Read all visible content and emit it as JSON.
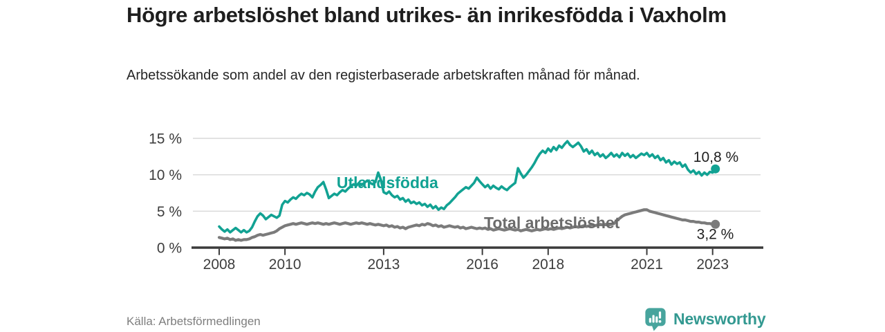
{
  "header": {
    "title": "Högre arbetslöshet bland utrikes- än inrikesfödda i Vaxholm",
    "subtitle": "Arbetssökande som andel av den registerbaserade arbetskraften månad för månad."
  },
  "chart_data": {
    "type": "line",
    "unit": "%",
    "frequency": "monthly",
    "x_start": "2008-01",
    "x_end": "2023-02",
    "ylim": [
      0,
      16.5
    ],
    "grid": "horizontal",
    "legend_position": "inline-labels",
    "yticks": [
      {
        "value": 0,
        "label": "0 %"
      },
      {
        "value": 5,
        "label": "5 %"
      },
      {
        "value": 10,
        "label": "10 %"
      },
      {
        "value": 15,
        "label": "15 %"
      }
    ],
    "xticks": [
      {
        "value": 2008,
        "label": "2008"
      },
      {
        "value": 2010,
        "label": "2010"
      },
      {
        "value": 2013,
        "label": "2013"
      },
      {
        "value": 2016,
        "label": "2016"
      },
      {
        "value": 2018,
        "label": "2018"
      },
      {
        "value": 2021,
        "label": "2021"
      },
      {
        "value": 2023,
        "label": "2023"
      }
    ],
    "series": [
      {
        "name": "Utlandsfödda",
        "color": "#12a293",
        "end_value_label": "10,8 %",
        "end_value": 10.8,
        "values": [
          2.9,
          2.5,
          2.2,
          2.5,
          2.1,
          2.4,
          2.7,
          2.4,
          2.1,
          2.4,
          2.1,
          2.3,
          2.8,
          3.6,
          4.3,
          4.7,
          4.4,
          3.9,
          4.2,
          4.5,
          4.3,
          4.1,
          4.4,
          5.9,
          6.4,
          6.2,
          6.6,
          6.9,
          6.7,
          7.1,
          7.4,
          7.2,
          7.5,
          7.3,
          6.9,
          7.7,
          8.3,
          8.6,
          9.0,
          8.0,
          6.8,
          7.1,
          7.4,
          7.2,
          7.6,
          7.9,
          7.7,
          8.1,
          8.4,
          8.7,
          8.5,
          8.9,
          8.6,
          8.9,
          9.2,
          8.9,
          8.7,
          9.0,
          10.3,
          9.3,
          7.6,
          7.4,
          7.7,
          7.2,
          6.9,
          7.1,
          6.6,
          6.8,
          6.3,
          6.6,
          6.1,
          6.3,
          6.0,
          6.2,
          5.8,
          6.0,
          5.6,
          5.9,
          5.4,
          5.7,
          5.2,
          5.5,
          5.3,
          5.8,
          6.1,
          6.5,
          6.9,
          7.4,
          7.7,
          8.0,
          8.3,
          8.1,
          8.5,
          8.9,
          9.6,
          9.1,
          8.7,
          8.3,
          8.6,
          8.1,
          8.5,
          8.2,
          8.0,
          8.4,
          8.1,
          7.9,
          8.3,
          8.6,
          8.9,
          10.9,
          10.2,
          9.6,
          10.0,
          10.5,
          11.0,
          11.6,
          12.3,
          12.9,
          13.3,
          13.0,
          13.6,
          13.2,
          13.8,
          13.4,
          14.0,
          13.7,
          14.2,
          14.6,
          14.1,
          13.8,
          14.1,
          14.4,
          13.9,
          13.2,
          13.5,
          12.9,
          13.3,
          12.7,
          13.0,
          12.5,
          12.8,
          12.3,
          12.6,
          13.0,
          12.5,
          12.8,
          12.4,
          13.0,
          12.6,
          12.9,
          12.4,
          12.7,
          12.3,
          12.6,
          12.9,
          12.7,
          13.0,
          12.5,
          12.8,
          12.3,
          12.6,
          12.0,
          12.3,
          11.7,
          12.0,
          11.4,
          11.8,
          11.5,
          11.7,
          11.1,
          11.4,
          10.7,
          10.3,
          10.6,
          10.1,
          10.4,
          9.9,
          10.3,
          10.0,
          10.4,
          10.3,
          10.8
        ]
      },
      {
        "name": "Total arbetslöshet",
        "color": "#7b7b7b",
        "end_value_label": "3,2 %",
        "end_value": 3.2,
        "values": [
          1.4,
          1.3,
          1.2,
          1.3,
          1.1,
          1.2,
          1.0,
          1.1,
          1.0,
          1.1,
          1.1,
          1.2,
          1.4,
          1.5,
          1.7,
          1.8,
          1.7,
          1.8,
          1.9,
          2.0,
          2.1,
          2.3,
          2.6,
          2.8,
          3.0,
          3.1,
          3.2,
          3.3,
          3.2,
          3.3,
          3.4,
          3.3,
          3.2,
          3.3,
          3.4,
          3.3,
          3.4,
          3.3,
          3.2,
          3.3,
          3.2,
          3.3,
          3.4,
          3.3,
          3.2,
          3.3,
          3.4,
          3.3,
          3.2,
          3.3,
          3.4,
          3.3,
          3.4,
          3.3,
          3.2,
          3.3,
          3.2,
          3.1,
          3.2,
          3.1,
          3.0,
          3.1,
          2.9,
          3.0,
          2.8,
          2.9,
          2.7,
          2.8,
          2.6,
          2.8,
          2.9,
          3.0,
          3.1,
          3.0,
          3.2,
          3.1,
          3.3,
          3.2,
          3.0,
          3.1,
          2.9,
          3.0,
          2.8,
          2.9,
          3.0,
          2.9,
          2.8,
          2.9,
          2.7,
          2.8,
          2.6,
          2.7,
          2.8,
          2.7,
          2.6,
          2.7,
          2.6,
          2.7,
          2.5,
          2.6,
          2.4,
          2.5,
          2.6,
          2.5,
          2.4,
          2.5,
          2.6,
          2.5,
          2.4,
          2.5,
          2.3,
          2.4,
          2.5,
          2.4,
          2.3,
          2.4,
          2.5,
          2.4,
          2.5,
          2.6,
          2.5,
          2.6,
          2.5,
          2.6,
          2.7,
          2.6,
          2.7,
          2.8,
          2.7,
          2.8,
          2.9,
          2.8,
          2.9,
          3.0,
          2.9,
          3.0,
          3.1,
          3.0,
          3.1,
          3.2,
          3.1,
          3.2,
          3.1,
          3.2,
          3.3,
          3.7,
          4.0,
          4.3,
          4.5,
          4.6,
          4.7,
          4.8,
          4.9,
          5.0,
          5.1,
          5.2,
          5.2,
          5.0,
          4.9,
          4.8,
          4.7,
          4.6,
          4.5,
          4.4,
          4.3,
          4.2,
          4.1,
          4.0,
          3.9,
          3.8,
          3.8,
          3.7,
          3.6,
          3.6,
          3.5,
          3.5,
          3.4,
          3.4,
          3.3,
          3.3,
          3.2,
          3.2
        ]
      }
    ],
    "annotations": [
      {
        "role": "series-label",
        "text": "Utlandsfödda",
        "year": 2011.57,
        "pct": 8.15,
        "anchor": "start",
        "color": "#12a293"
      },
      {
        "role": "series-label",
        "text": "Total arbetslöshet",
        "year": 2016.05,
        "pct": 2.65,
        "anchor": "start",
        "color": "#6b6b6b"
      },
      {
        "role": "value-label",
        "text": "10,8 %",
        "year": 2023.1,
        "pct": 11.75,
        "anchor": "middle",
        "color": "#1f1f1f"
      },
      {
        "role": "value-label",
        "text": "3,2 %",
        "year": 2023.08,
        "pct": 1.2,
        "anchor": "middle",
        "color": "#1f1f1f"
      }
    ],
    "axis_color": "#3b3b3b",
    "gridline_color": "#d8d8d8"
  },
  "footer": {
    "source": "Källa: Arbetsförmedlingen",
    "brand": "Newsworthy",
    "brand_color": "#339991",
    "brand_icon_color": "#47a49d"
  }
}
